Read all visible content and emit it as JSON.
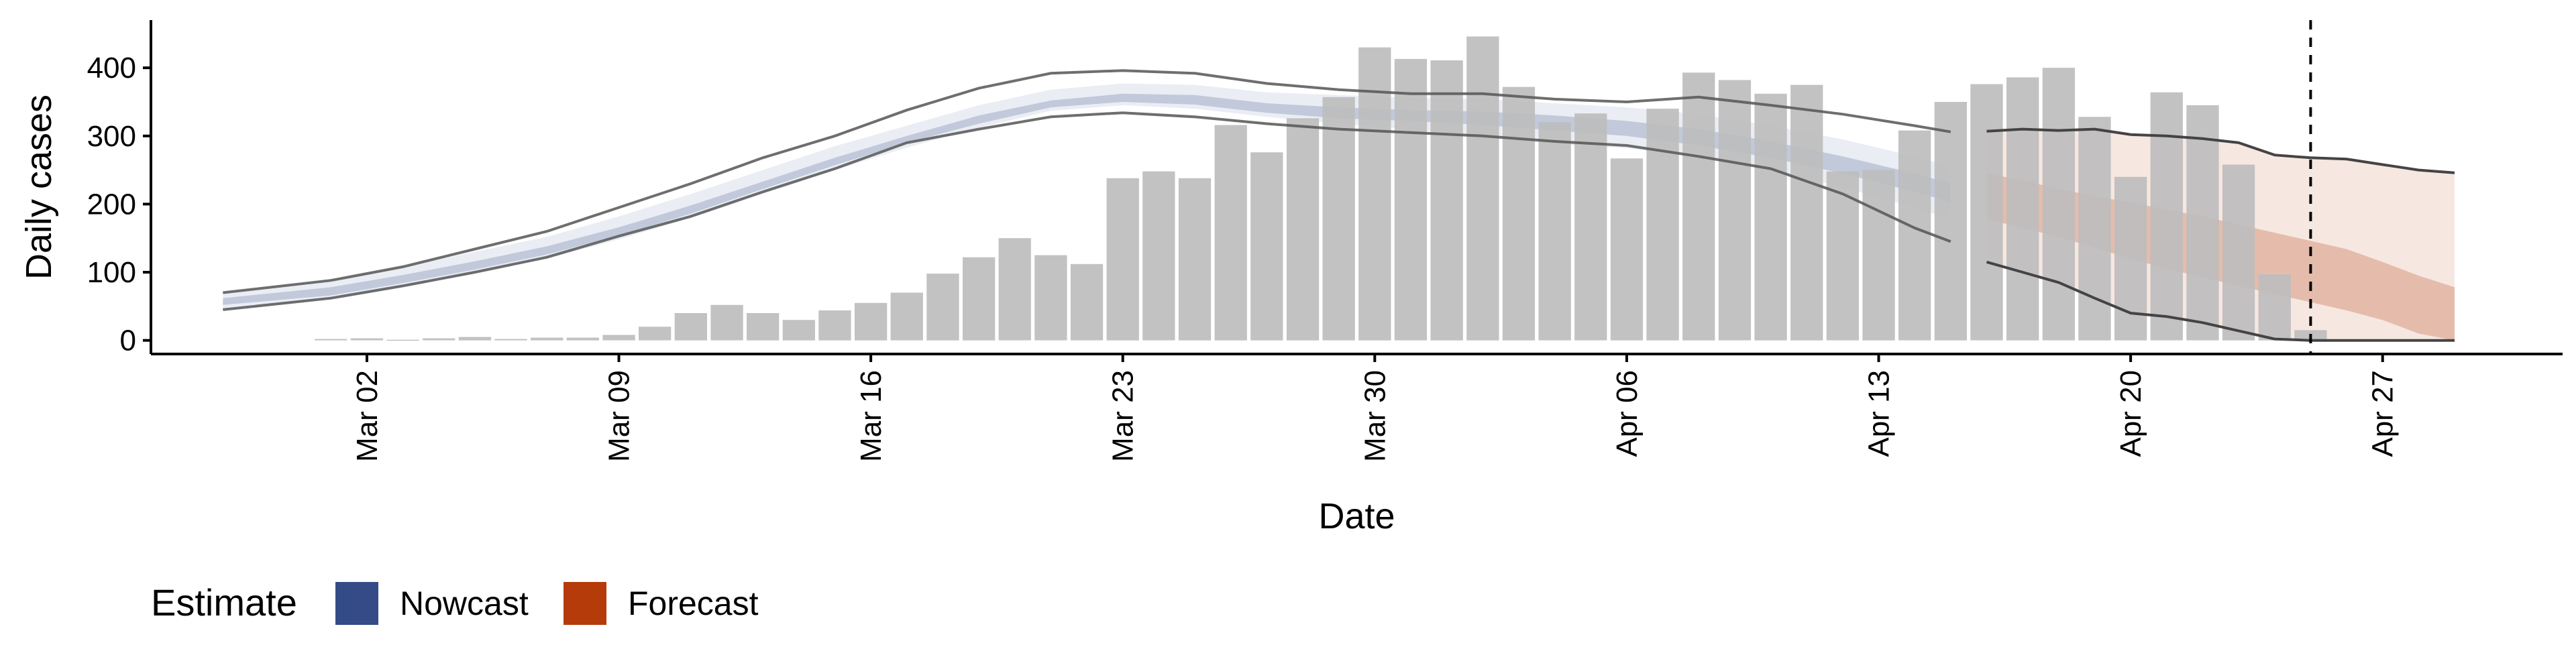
{
  "chart_data": {
    "type": "bar",
    "xlabel": "Date",
    "ylabel": "Daily cases",
    "ylim": [
      -20,
      470
    ],
    "y_ticks": [
      "0",
      "100",
      "200",
      "300",
      "400"
    ],
    "x_start": "Feb 25",
    "x_end": "May 02",
    "x_ticks": [
      "Mar 02",
      "Mar 09",
      "Mar 16",
      "Mar 23",
      "Mar 30",
      "Apr 06",
      "Apr 13",
      "Apr 20",
      "Apr 27"
    ],
    "vline_date": "Apr 25",
    "grid": false,
    "legend": {
      "title": "Estimate",
      "placement": "bottom-left",
      "items": [
        {
          "name": "Nowcast",
          "color": "#344b87"
        },
        {
          "name": "Forecast",
          "color": "#b53b0b"
        }
      ]
    },
    "bars": {
      "color": "#bdbdbd",
      "dates": [
        "Mar 01",
        "Mar 02",
        "Mar 03",
        "Mar 04",
        "Mar 05",
        "Mar 06",
        "Mar 07",
        "Mar 08",
        "Mar 09",
        "Mar 10",
        "Mar 11",
        "Mar 12",
        "Mar 13",
        "Mar 14",
        "Mar 15",
        "Mar 16",
        "Mar 17",
        "Mar 18",
        "Mar 19",
        "Mar 20",
        "Mar 21",
        "Mar 22",
        "Mar 23",
        "Mar 24",
        "Mar 25",
        "Mar 26",
        "Mar 27",
        "Mar 28",
        "Mar 29",
        "Mar 30",
        "Mar 31",
        "Apr 01",
        "Apr 02",
        "Apr 03",
        "Apr 04",
        "Apr 05",
        "Apr 06",
        "Apr 07",
        "Apr 08",
        "Apr 09",
        "Apr 10",
        "Apr 11",
        "Apr 12",
        "Apr 13",
        "Apr 14",
        "Apr 15",
        "Apr 16",
        "Apr 17",
        "Apr 18",
        "Apr 19",
        "Apr 20",
        "Apr 21",
        "Apr 22",
        "Apr 23",
        "Apr 24",
        "Apr 25"
      ],
      "values": [
        2,
        3,
        1,
        3,
        5,
        2,
        4,
        4,
        8,
        20,
        40,
        52,
        40,
        30,
        44,
        55,
        70,
        98,
        122,
        150,
        125,
        112,
        238,
        248,
        238,
        316,
        276,
        326,
        357,
        430,
        413,
        411,
        446,
        372,
        320,
        333,
        267,
        340,
        393,
        382,
        362,
        375,
        248,
        250,
        308,
        350,
        376,
        386,
        400,
        328,
        240,
        364,
        345,
        258,
        97,
        15
      ]
    },
    "nowcast": {
      "color": "#344b87",
      "dates": [
        "Feb 27",
        "Mar 01",
        "Mar 03",
        "Mar 05",
        "Mar 07",
        "Mar 09",
        "Mar 11",
        "Mar 13",
        "Mar 15",
        "Mar 17",
        "Mar 19",
        "Mar 21",
        "Mar 23",
        "Mar 25",
        "Mar 27",
        "Mar 29",
        "Mar 31",
        "Apr 02",
        "Apr 04",
        "Apr 06",
        "Apr 08",
        "Apr 10",
        "Apr 12",
        "Apr 14",
        "Apr 15"
      ],
      "outer_upper": [
        70,
        88,
        108,
        130,
        152,
        182,
        215,
        250,
        285,
        315,
        345,
        368,
        377,
        375,
        364,
        360,
        356,
        354,
        348,
        342,
        332,
        315,
        295,
        270,
        255
      ],
      "outer_lower": [
        45,
        60,
        78,
        98,
        120,
        148,
        180,
        215,
        250,
        283,
        312,
        337,
        345,
        340,
        328,
        318,
        310,
        298,
        288,
        282,
        270,
        250,
        225,
        195,
        178
      ],
      "inner_upper": [
        62,
        78,
        96,
        116,
        138,
        166,
        198,
        233,
        268,
        300,
        330,
        352,
        362,
        360,
        348,
        342,
        338,
        336,
        330,
        322,
        310,
        292,
        270,
        245,
        230
      ],
      "inner_lower": [
        52,
        66,
        84,
        104,
        126,
        154,
        186,
        222,
        257,
        290,
        318,
        342,
        350,
        346,
        334,
        326,
        322,
        316,
        308,
        300,
        286,
        268,
        245,
        218,
        203
      ]
    },
    "nowcast_outer_lines": {
      "color": "#555555",
      "dates": [
        "Feb 27",
        "Mar 01",
        "Mar 03",
        "Mar 05",
        "Mar 07",
        "Mar 09",
        "Mar 11",
        "Mar 13",
        "Mar 15",
        "Mar 17",
        "Mar 19",
        "Mar 21",
        "Mar 23",
        "Mar 25",
        "Mar 27",
        "Mar 29",
        "Mar 31",
        "Apr 02",
        "Apr 04",
        "Apr 06",
        "Apr 08",
        "Apr 10",
        "Apr 12",
        "Apr 14",
        "Apr 15"
      ],
      "upper": [
        70,
        88,
        108,
        134,
        160,
        195,
        230,
        268,
        300,
        338,
        370,
        392,
        396,
        392,
        377,
        368,
        362,
        362,
        354,
        350,
        357,
        345,
        332,
        315,
        306
      ],
      "lower": [
        45,
        62,
        80,
        100,
        122,
        153,
        182,
        218,
        252,
        290,
        310,
        328,
        334,
        328,
        318,
        310,
        305,
        300,
        292,
        286,
        270,
        252,
        215,
        165,
        145
      ]
    },
    "forecast": {
      "color": "#b53b0b",
      "dates": [
        "Apr 16",
        "Apr 17",
        "Apr 18",
        "Apr 19",
        "Apr 20",
        "Apr 21",
        "Apr 22",
        "Apr 23",
        "Apr 24",
        "Apr 25",
        "Apr 26",
        "Apr 27",
        "Apr 28",
        "Apr 29"
      ],
      "outer_upper": [
        307,
        310,
        308,
        310,
        302,
        300,
        296,
        290,
        272,
        268,
        266,
        258,
        250,
        246
      ],
      "outer_lower": [
        115,
        100,
        85,
        62,
        40,
        35,
        26,
        14,
        2,
        0,
        0,
        0,
        0,
        0
      ],
      "inner_upper": [
        245,
        235,
        222,
        212,
        202,
        192,
        182,
        170,
        158,
        146,
        134,
        115,
        95,
        78
      ],
      "inner_lower": [
        178,
        165,
        152,
        136,
        120,
        105,
        93,
        80,
        68,
        56,
        44,
        30,
        10,
        0
      ]
    }
  }
}
